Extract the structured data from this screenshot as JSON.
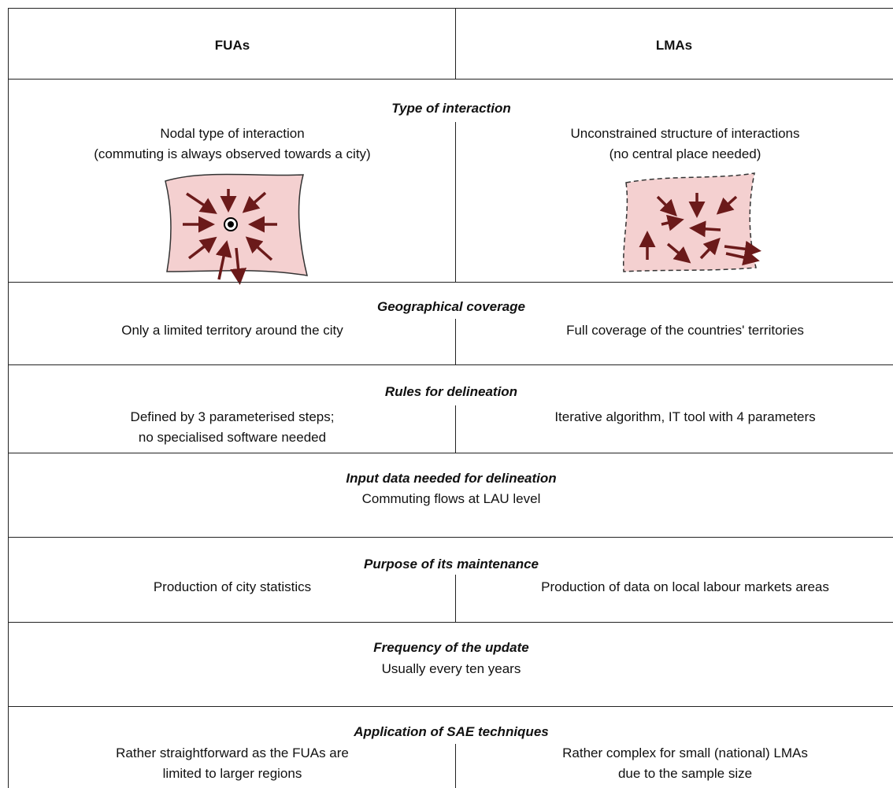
{
  "header": {
    "columns": [
      "FUAs",
      "LMAs"
    ]
  },
  "rows": [
    {
      "heading": "Type of interaction",
      "left": [
        "Nodal type of interaction",
        "(commuting  is always observed towards a city)"
      ],
      "right": [
        "Unconstrained structure of interactions",
        "(no central place needed)"
      ]
    },
    {
      "heading": "Geographical coverage",
      "left": [
        "Only a limited territory around the city"
      ],
      "right": [
        "Full coverage of the countries' territories"
      ]
    },
    {
      "heading": "Rules for delineation",
      "left": [
        "Defined by 3 parameterised steps;",
        "no specialised software needed"
      ],
      "right": [
        "Iterative algorithm, IT tool with 4 parameters"
      ]
    },
    {
      "heading": "Input data needed for delineation",
      "text": [
        "Commuting  flows at LAU level"
      ]
    },
    {
      "heading": "Purpose of its maintenance",
      "left": [
        "Production of city statistics"
      ],
      "right": [
        "Production of data on local labour markets areas"
      ]
    },
    {
      "heading": "Frequency of the update",
      "text": [
        "Usually every ten years"
      ]
    },
    {
      "heading": "Application of SAE techniques",
      "left": [
        "Rather straightforward as the FUAs are",
        "limited to larger regions"
      ],
      "right": [
        "Rather complex for small (national) LMAs",
        "due to the sample size"
      ]
    }
  ]
}
